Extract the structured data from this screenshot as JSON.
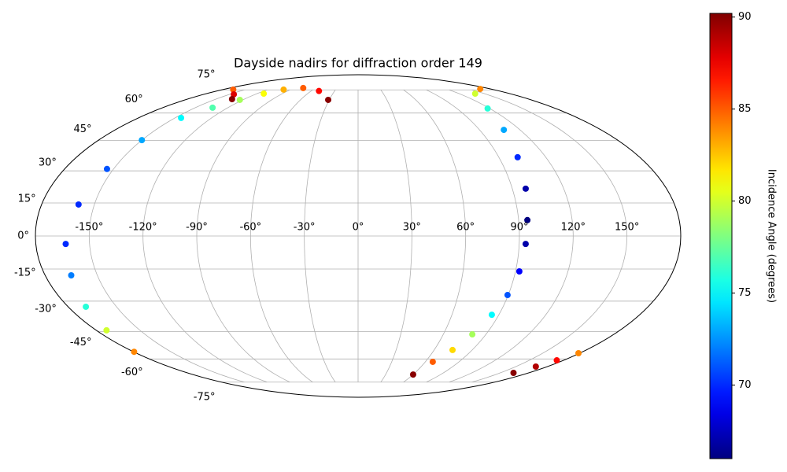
{
  "chart_data": {
    "type": "scatter",
    "projection": "mollweide",
    "title": "Dayside nadirs for diffraction order 149",
    "grid": true,
    "xlim": [
      -180,
      180
    ],
    "ylim": [
      -90,
      90
    ],
    "xticks": [
      {
        "value": -150,
        "label": "-150°"
      },
      {
        "value": -120,
        "label": "-120°"
      },
      {
        "value": -90,
        "label": "-90°"
      },
      {
        "value": -60,
        "label": "-60°"
      },
      {
        "value": -30,
        "label": "-30°"
      },
      {
        "value": 0,
        "label": "0°"
      },
      {
        "value": 30,
        "label": "30°"
      },
      {
        "value": 60,
        "label": "60°"
      },
      {
        "value": 90,
        "label": "90°"
      },
      {
        "value": 120,
        "label": "120°"
      },
      {
        "value": 150,
        "label": "150°"
      }
    ],
    "yticks": [
      {
        "value": -75,
        "label": "-75°"
      },
      {
        "value": -60,
        "label": "-60°"
      },
      {
        "value": -45,
        "label": "-45°"
      },
      {
        "value": -30,
        "label": "-30°"
      },
      {
        "value": -15,
        "label": "-15°"
      },
      {
        "value": 0,
        "label": "0°"
      },
      {
        "value": 15,
        "label": "15°"
      },
      {
        "value": 30,
        "label": "30°"
      },
      {
        "value": 45,
        "label": "45°"
      },
      {
        "value": 60,
        "label": "60°"
      },
      {
        "value": 75,
        "label": "75°"
      }
    ],
    "points": {
      "x": [
        -31.1,
        -49.9,
        -77,
        -99,
        -112,
        -123,
        -134,
        -145,
        -150,
        -154,
        -159,
        -163.3,
        -165,
        -169,
        -173,
        -179.5,
        -166,
        -145,
        -133,
        166,
        139,
        118,
        108,
        102,
        97.8,
        94.9,
        93.6,
        92.2,
        89.6,
        85.5,
        80.4,
        74.5,
        66.6,
        60,
        164,
        169,
        174,
        179
      ],
      "y": [
        68.1,
        74.2,
        76.4,
        75.2,
        72.3,
        68.1,
        63.2,
        57.2,
        45.2,
        30.9,
        14.3,
        -3.6,
        -17.9,
        -32.7,
        -44.4,
        -55.9,
        75.2,
        71.8,
        68.6,
        75.7,
        72.3,
        62.7,
        50.6,
        36.6,
        21.6,
        7.2,
        -3.6,
        -16.1,
        -27.1,
        -36.6,
        -46.5,
        -54.9,
        -61.7,
        -69.7,
        -68.6,
        -64.6,
        -60.8,
        -56.7
      ],
      "c": [
        90,
        87,
        85,
        83,
        81,
        79,
        77,
        75,
        73,
        71,
        70,
        70,
        72,
        76,
        80,
        84,
        85,
        88,
        90,
        84,
        80,
        76,
        73,
        70,
        67,
        66,
        67,
        69,
        71,
        75,
        79,
        82,
        85,
        90,
        90,
        89,
        87,
        84
      ]
    },
    "colorbar": {
      "label": "Incidence Angle (degrees)",
      "colormap": "jet",
      "lim": [
        66,
        90.2
      ],
      "ticks": [
        70,
        75,
        80,
        85,
        90
      ]
    }
  }
}
